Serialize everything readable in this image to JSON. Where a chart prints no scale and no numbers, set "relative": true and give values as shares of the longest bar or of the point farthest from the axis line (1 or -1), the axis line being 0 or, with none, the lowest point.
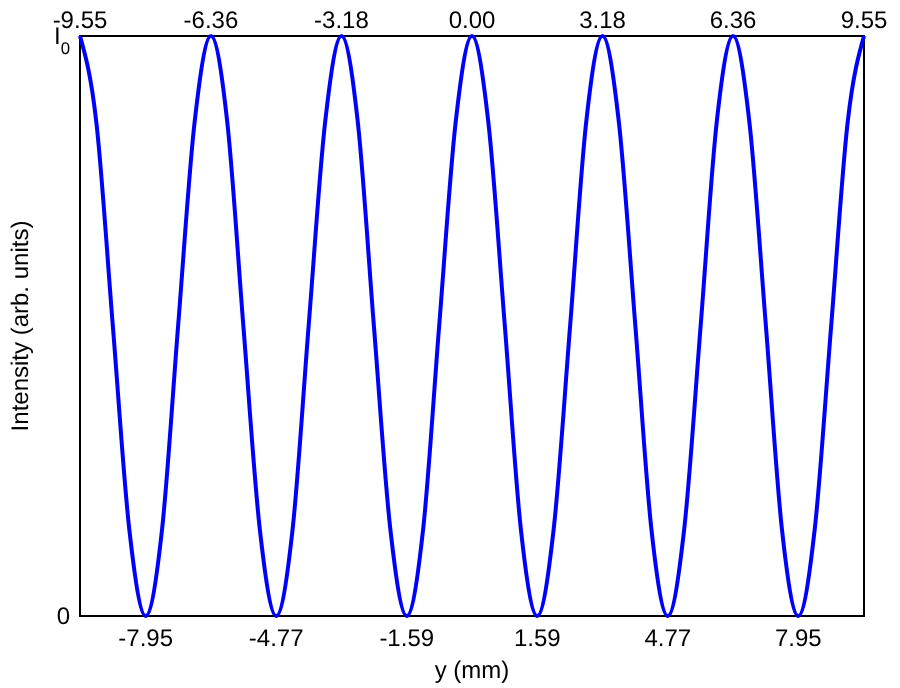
{
  "chart_data": {
    "type": "line",
    "xlabel": "y (mm)",
    "ylabel": "Intensity (arb. units)",
    "xlim": [
      -9.55,
      9.55
    ],
    "xticks": [
      -7.95,
      -4.77,
      -1.59,
      1.59,
      4.77,
      7.95
    ],
    "x2lim": [
      -9.55,
      9.55
    ],
    "x2ticks": [
      -9.55,
      -6.36,
      -3.18,
      {
        "value": 0,
        "label": "0.00"
      },
      3.18,
      6.36,
      9.55
    ],
    "relative": true,
    "annotations": [
      "I$_{0}$",
      "0"
    ],
    "marker": "none",
    "line_style": "solid",
    "series": [
      {
        "color": "#0000ff",
        "x": [
          -9.55,
          -9.15,
          -8.75,
          -8.35,
          -7.95,
          -7.55,
          -7.16,
          -6.76,
          -6.36,
          -5.96,
          -5.57,
          -5.17,
          -4.77,
          -4.37,
          -3.98,
          -3.58,
          -3.18,
          -2.78,
          -2.39,
          -1.99,
          -1.59,
          -1.19,
          -0.8,
          -0.4,
          0,
          0.4,
          0.8,
          1.19,
          1.59,
          1.99,
          2.39,
          2.78,
          3.18,
          3.58,
          3.98,
          4.37,
          4.77,
          5.17,
          5.57,
          5.96,
          6.36,
          6.76,
          7.16,
          7.55,
          7.95,
          8.35,
          8.75,
          9.15,
          9.55
        ],
        "values": [
          1,
          0.85,
          0.5,
          0.15,
          0,
          0.15,
          0.5,
          0.85,
          1,
          0.85,
          0.5,
          0.15,
          0,
          0.15,
          0.5,
          0.85,
          1,
          0.85,
          0.5,
          0.15,
          0,
          0.15,
          0.5,
          0.85,
          1,
          0.85,
          0.5,
          0.15,
          0,
          0.15,
          0.5,
          0.85,
          1,
          0.85,
          0.5,
          0.15,
          0,
          0.15,
          0.5,
          0.85,
          1,
          0.85,
          0.5,
          0.15,
          0,
          0.15,
          0.5,
          0.85,
          1
        ]
      }
    ]
  }
}
